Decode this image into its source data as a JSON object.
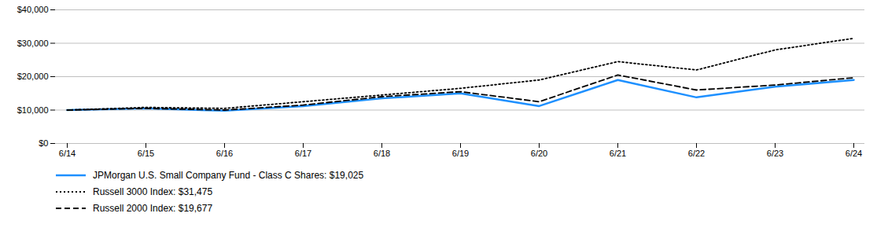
{
  "chart_data": {
    "type": "line",
    "categories": [
      "6/14",
      "6/15",
      "6/16",
      "6/17",
      "6/18",
      "6/19",
      "6/20",
      "6/21",
      "6/22",
      "6/23",
      "6/24"
    ],
    "series": [
      {
        "name": "JPMorgan U.S. Small Company Fund - Class C Shares: $19,025",
        "color": "#1E90FF",
        "line_style": "solid",
        "values": [
          10000,
          10500,
          9800,
          11200,
          13500,
          15000,
          11200,
          19000,
          13800,
          17000,
          19025
        ]
      },
      {
        "name": "Russell 3000 Index: $31,475",
        "color": "#000000",
        "line_style": "dotted",
        "values": [
          10000,
          10800,
          10500,
          12500,
          14500,
          16500,
          19000,
          24500,
          22000,
          28000,
          31475
        ]
      },
      {
        "name": "Russell 2000 Index: $19,677",
        "color": "#000000",
        "line_style": "dashed",
        "values": [
          10000,
          10500,
          10000,
          11500,
          14000,
          15500,
          12500,
          20500,
          16000,
          17500,
          19677
        ]
      }
    ],
    "ylim": [
      0,
      40000
    ],
    "yticks": [
      {
        "value": 0,
        "label": "$0"
      },
      {
        "value": 10000,
        "label": "$10,000"
      },
      {
        "value": 20000,
        "label": "$20,000"
      },
      {
        "value": 30000,
        "label": "$30,000"
      },
      {
        "value": 40000,
        "label": "$40,000"
      }
    ],
    "grid": true,
    "legend": "bottom"
  }
}
